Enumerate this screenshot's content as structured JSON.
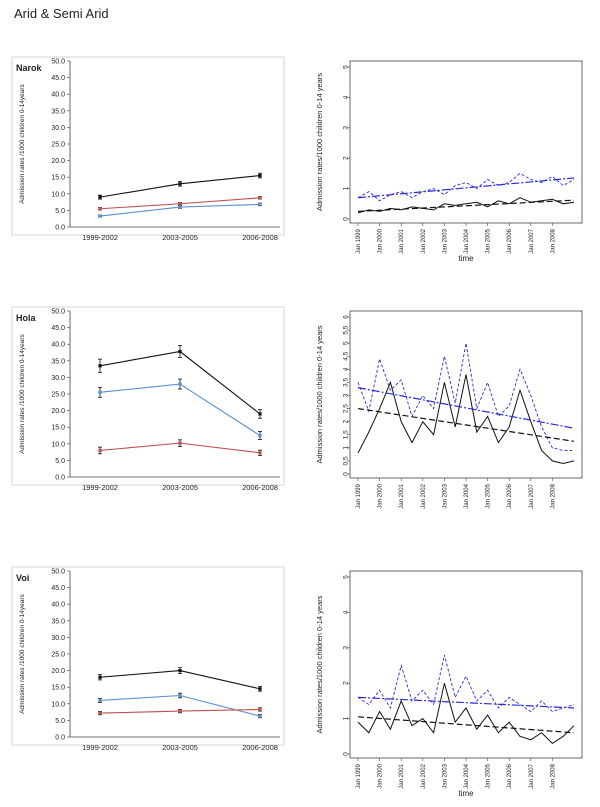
{
  "page": {
    "title": "Arid & Semi Arid"
  },
  "colors": {
    "black": "#111111",
    "blue": "#5b8fd0",
    "red": "#c0504d",
    "ts_blue": "#2a2ad6",
    "ts_black": "#111111"
  },
  "chart_data": [
    {
      "id": "narok-bar",
      "type": "line",
      "title": "Narok",
      "categories": [
        "1999-2002",
        "2003-2005",
        "2006-2008"
      ],
      "ylabel": "Admission rates /1000 children 0-14years",
      "ylim": [
        0,
        50
      ],
      "yticks": [
        "0.0",
        "5.0",
        "10.0",
        "15.0",
        "20.0",
        "25.0",
        "30.0",
        "35.0",
        "40.0",
        "45.0",
        "50.0"
      ],
      "series": [
        {
          "name": "black",
          "color": "#111111",
          "values": [
            9.0,
            13.0,
            15.5
          ],
          "err": [
            0.6,
            0.7,
            0.7
          ]
        },
        {
          "name": "red",
          "color": "#c0504d",
          "values": [
            5.5,
            7.0,
            8.8
          ],
          "err": [
            0.4,
            0.4,
            0.4
          ]
        },
        {
          "name": "blue",
          "color": "#5b8fd0",
          "values": [
            3.3,
            6.0,
            6.8
          ],
          "err": [
            0.3,
            0.4,
            0.4
          ]
        }
      ]
    },
    {
      "id": "hola-bar",
      "type": "line",
      "title": "Hola",
      "categories": [
        "1999-2002",
        "2003-2005",
        "2006-2008"
      ],
      "ylabel": "Admission rates /1000 children 0-14years",
      "ylim": [
        0,
        50
      ],
      "yticks": [
        "0.0",
        "5.0",
        "10.0",
        "15.0",
        "20.0",
        "25.0",
        "30.0",
        "35.0",
        "40.0",
        "45.0",
        "50.0"
      ],
      "series": [
        {
          "name": "black",
          "color": "#111111",
          "values": [
            33.5,
            37.8,
            19.0
          ],
          "err": [
            2.0,
            1.8,
            1.3
          ]
        },
        {
          "name": "blue",
          "color": "#5b8fd0",
          "values": [
            25.5,
            28.0,
            12.5
          ],
          "err": [
            1.5,
            1.5,
            1.2
          ]
        },
        {
          "name": "red",
          "color": "#c0504d",
          "values": [
            8.0,
            10.2,
            7.3
          ],
          "err": [
            1.0,
            1.0,
            0.8
          ]
        }
      ]
    },
    {
      "id": "voi-bar",
      "type": "line",
      "title": "Voi",
      "categories": [
        "1999-2002",
        "2003-2005",
        "2006-2008"
      ],
      "ylabel": "Admission rates /1000 children 0-14years",
      "ylim": [
        0,
        50
      ],
      "yticks": [
        "0.0",
        "5.0",
        "10.0",
        "15.0",
        "20.0",
        "25.0",
        "30.0",
        "35.0",
        "40.0",
        "45.0",
        "50.0"
      ],
      "series": [
        {
          "name": "black",
          "color": "#111111",
          "values": [
            18.0,
            20.0,
            14.5
          ],
          "err": [
            0.8,
            0.9,
            0.7
          ]
        },
        {
          "name": "blue",
          "color": "#5b8fd0",
          "values": [
            11.0,
            12.5,
            6.3
          ],
          "err": [
            0.6,
            0.7,
            0.5
          ]
        },
        {
          "name": "red",
          "color": "#c0504d",
          "values": [
            7.2,
            7.8,
            8.3
          ],
          "err": [
            0.5,
            0.5,
            0.5
          ]
        }
      ]
    },
    {
      "id": "narok-ts",
      "type": "line",
      "xlabel": "time",
      "ylabel": "Admission rates/1000 children 0-14 years",
      "ylim": [
        0,
        5
      ],
      "yticks": [
        "0",
        "1",
        "2",
        "3",
        "4",
        "5"
      ],
      "xticks": [
        "Jan 1999",
        "Jan 2000",
        "Jan 2001",
        "Jan 2002",
        "Jan 2003",
        "Jan 2004",
        "Jan 2005",
        "Jan 2006",
        "Jan 2007",
        "Jan 2008"
      ],
      "x": [
        1999.0,
        1999.5,
        2000.0,
        2000.5,
        2001.0,
        2001.5,
        2002.0,
        2002.5,
        2003.0,
        2003.5,
        2004.0,
        2004.5,
        2005.0,
        2005.5,
        2006.0,
        2006.5,
        2007.0,
        2007.5,
        2008.0,
        2008.5,
        2009.0
      ],
      "series": [
        {
          "name": "blue dashed",
          "values": [
            0.7,
            0.9,
            0.6,
            0.8,
            0.9,
            0.7,
            0.9,
            1.0,
            0.8,
            1.1,
            1.2,
            1.0,
            1.3,
            1.1,
            1.2,
            1.5,
            1.3,
            1.2,
            1.4,
            1.1,
            1.3
          ]
        },
        {
          "name": "black solid",
          "values": [
            0.2,
            0.3,
            0.25,
            0.35,
            0.3,
            0.4,
            0.35,
            0.3,
            0.5,
            0.45,
            0.5,
            0.55,
            0.4,
            0.6,
            0.5,
            0.7,
            0.55,
            0.6,
            0.65,
            0.5,
            0.55
          ]
        }
      ],
      "trends": [
        {
          "name": "blue trend",
          "from": 0.7,
          "to": 1.35
        },
        {
          "name": "black trend",
          "from": 0.25,
          "to": 0.62
        }
      ]
    },
    {
      "id": "hola-ts",
      "type": "line",
      "xlabel": "",
      "ylabel": "Admission rates/1000 children 0-14 years",
      "ylim": [
        0,
        6
      ],
      "yticks": [
        "0",
        "0.5",
        "1",
        "1.5",
        "2",
        "2.5",
        "3",
        "3.5",
        "4",
        "4.5",
        "5",
        "5.5",
        "6"
      ],
      "xticks": [
        "Jan 1999",
        "Jan 2000",
        "Jan 2001",
        "Jan 2002",
        "Jan 2003",
        "Jan 2004",
        "Jan 2005",
        "Jan 2006",
        "Jan 2007",
        "Jan 2008"
      ],
      "x": [
        1999.0,
        1999.5,
        2000.0,
        2000.5,
        2001.0,
        2001.5,
        2002.0,
        2002.5,
        2003.0,
        2003.5,
        2004.0,
        2004.5,
        2005.0,
        2005.5,
        2006.0,
        2006.5,
        2007.0,
        2007.5,
        2008.0,
        2008.5,
        2009.0
      ],
      "series": [
        {
          "name": "blue dashed",
          "values": [
            3.5,
            2.4,
            4.4,
            3.2,
            3.6,
            2.2,
            3.0,
            2.5,
            4.5,
            2.7,
            5.0,
            2.5,
            3.5,
            2.2,
            2.6,
            4.0,
            3.0,
            1.8,
            1.0,
            0.9,
            0.9
          ]
        },
        {
          "name": "black solid",
          "values": [
            0.8,
            1.6,
            2.5,
            3.5,
            2.0,
            1.2,
            2.0,
            1.5,
            3.5,
            1.8,
            3.8,
            1.6,
            2.2,
            1.2,
            1.8,
            3.2,
            2.0,
            0.9,
            0.5,
            0.4,
            0.5
          ]
        }
      ],
      "trends": [
        {
          "name": "blue trend",
          "from": 3.3,
          "to": 1.75
        },
        {
          "name": "black trend",
          "from": 2.5,
          "to": 1.25
        }
      ]
    },
    {
      "id": "voi-ts",
      "type": "line",
      "xlabel": "time",
      "ylabel": "Admission rates/1000 children 0-14 years",
      "ylim": [
        0,
        5
      ],
      "yticks": [
        "0",
        "1",
        "2",
        "3",
        "4",
        "5"
      ],
      "xticks": [
        "Jan 1999",
        "Jan 2000",
        "Jan 2001",
        "Jan 2002",
        "Jan 2003",
        "Jan 2004",
        "Jan 2005",
        "Jan 2006",
        "Jan 2007",
        "Jan 2008"
      ],
      "x": [
        1999.0,
        1999.5,
        2000.0,
        2000.5,
        2001.0,
        2001.5,
        2002.0,
        2002.5,
        2003.0,
        2003.5,
        2004.0,
        2004.5,
        2005.0,
        2005.5,
        2006.0,
        2006.5,
        2007.0,
        2007.5,
        2008.0,
        2008.5,
        2009.0
      ],
      "series": [
        {
          "name": "blue dashed",
          "values": [
            1.6,
            1.4,
            1.8,
            1.3,
            2.5,
            1.5,
            1.8,
            1.4,
            2.8,
            1.6,
            2.2,
            1.5,
            1.8,
            1.3,
            1.6,
            1.4,
            1.2,
            1.5,
            1.2,
            1.3,
            1.4
          ]
        },
        {
          "name": "black solid",
          "values": [
            0.9,
            0.6,
            1.2,
            0.7,
            1.5,
            0.8,
            1.0,
            0.6,
            2.0,
            0.9,
            1.3,
            0.7,
            1.1,
            0.6,
            0.9,
            0.5,
            0.4,
            0.6,
            0.3,
            0.5,
            0.8
          ]
        }
      ],
      "trends": [
        {
          "name": "blue trend",
          "from": 1.6,
          "to": 1.3
        },
        {
          "name": "black trend",
          "from": 1.05,
          "to": 0.6
        }
      ]
    }
  ]
}
